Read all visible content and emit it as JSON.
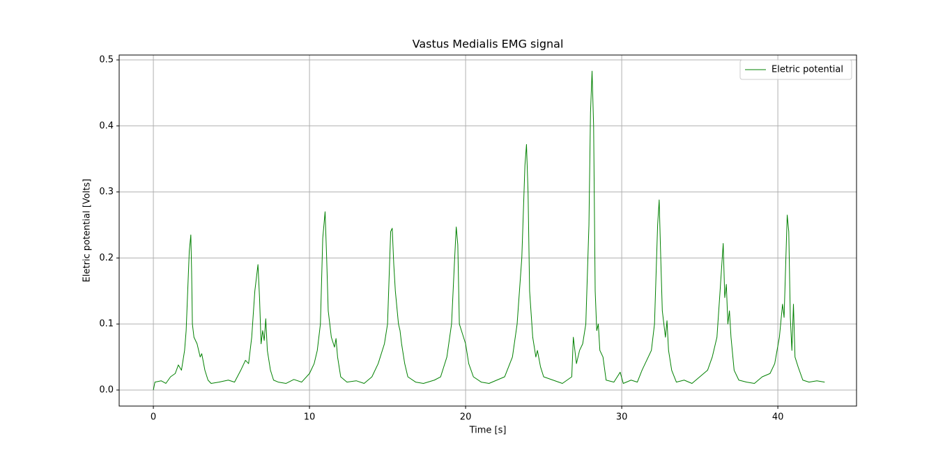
{
  "chart_data": {
    "type": "line",
    "title": "Vastus Medialis EMG signal",
    "x_label": "Time [s]",
    "y_label": "Eletric potential [Volts]",
    "x": [
      0,
      0.1,
      0.5,
      0.8,
      1.1,
      1.4,
      1.6,
      1.8,
      1.9,
      2.0,
      2.1,
      2.2,
      2.3,
      2.4,
      2.45,
      2.5,
      2.6,
      2.8,
      3.0,
      3.1,
      3.3,
      3.5,
      3.7,
      4.2,
      4.8,
      5.2,
      5.6,
      5.9,
      6.1,
      6.3,
      6.5,
      6.7,
      6.8,
      6.9,
      7.0,
      7.1,
      7.2,
      7.3,
      7.5,
      7.7,
      8.0,
      8.5,
      9.0,
      9.5,
      10.0,
      10.3,
      10.5,
      10.7,
      10.85,
      11.0,
      11.1,
      11.2,
      11.4,
      11.6,
      11.7,
      11.8,
      12.0,
      12.4,
      13.0,
      13.5,
      14.0,
      14.4,
      14.8,
      15.0,
      15.2,
      15.3,
      15.4,
      15.5,
      15.7,
      15.8,
      15.9,
      16.1,
      16.3,
      16.8,
      17.3,
      18.0,
      18.4,
      18.8,
      19.1,
      19.3,
      19.4,
      19.5,
      19.6,
      19.8,
      20.0,
      20.2,
      20.5,
      21.0,
      21.5,
      22.0,
      22.5,
      23.0,
      23.3,
      23.6,
      23.8,
      23.9,
      24.0,
      24.1,
      24.3,
      24.5,
      24.6,
      24.8,
      25.0,
      25.6,
      26.2,
      26.8,
      26.9,
      27.1,
      27.3,
      27.5,
      27.7,
      27.9,
      28.0,
      28.1,
      28.2,
      28.3,
      28.4,
      28.5,
      28.6,
      28.8,
      29.0,
      29.5,
      29.9,
      30.1,
      30.6,
      31.0,
      31.3,
      31.6,
      31.9,
      32.1,
      32.3,
      32.4,
      32.5,
      32.6,
      32.8,
      32.9,
      33.0,
      33.2,
      33.5,
      34.0,
      34.5,
      35.0,
      35.5,
      35.8,
      36.1,
      36.3,
      36.5,
      36.6,
      36.7,
      36.8,
      36.9,
      37.0,
      37.2,
      37.5,
      38.0,
      38.5,
      39.0,
      39.5,
      39.8,
      40.1,
      40.3,
      40.4,
      40.6,
      40.7,
      40.8,
      40.9,
      41.0,
      41.1,
      41.3,
      41.6,
      42.0,
      42.5,
      43.0
    ],
    "series": [
      {
        "name": "Eletric potential",
        "color": "#008000",
        "values": [
          0,
          0.012,
          0.014,
          0.01,
          0.02,
          0.025,
          0.038,
          0.03,
          0.045,
          0.06,
          0.09,
          0.15,
          0.21,
          0.235,
          0.18,
          0.1,
          0.08,
          0.07,
          0.05,
          0.055,
          0.03,
          0.015,
          0.01,
          0.012,
          0.015,
          0.012,
          0.03,
          0.045,
          0.04,
          0.08,
          0.15,
          0.19,
          0.14,
          0.07,
          0.09,
          0.075,
          0.108,
          0.06,
          0.03,
          0.015,
          0.012,
          0.01,
          0.016,
          0.012,
          0.025,
          0.04,
          0.06,
          0.1,
          0.23,
          0.27,
          0.2,
          0.12,
          0.08,
          0.065,
          0.078,
          0.05,
          0.02,
          0.012,
          0.014,
          0.01,
          0.02,
          0.04,
          0.07,
          0.1,
          0.24,
          0.245,
          0.19,
          0.15,
          0.1,
          0.09,
          0.07,
          0.04,
          0.02,
          0.012,
          0.01,
          0.015,
          0.02,
          0.05,
          0.1,
          0.2,
          0.247,
          0.22,
          0.1,
          0.085,
          0.07,
          0.04,
          0.02,
          0.012,
          0.01,
          0.015,
          0.02,
          0.05,
          0.1,
          0.2,
          0.34,
          0.372,
          0.3,
          0.15,
          0.08,
          0.05,
          0.06,
          0.035,
          0.02,
          0.015,
          0.01,
          0.02,
          0.08,
          0.04,
          0.06,
          0.07,
          0.1,
          0.25,
          0.42,
          0.483,
          0.4,
          0.15,
          0.09,
          0.1,
          0.06,
          0.05,
          0.015,
          0.012,
          0.027,
          0.01,
          0.015,
          0.012,
          0.03,
          0.045,
          0.06,
          0.1,
          0.25,
          0.288,
          0.2,
          0.12,
          0.08,
          0.105,
          0.06,
          0.03,
          0.012,
          0.015,
          0.01,
          0.02,
          0.03,
          0.05,
          0.08,
          0.15,
          0.222,
          0.14,
          0.16,
          0.1,
          0.12,
          0.08,
          0.03,
          0.015,
          0.012,
          0.01,
          0.02,
          0.025,
          0.04,
          0.08,
          0.13,
          0.11,
          0.265,
          0.24,
          0.11,
          0.06,
          0.13,
          0.05,
          0.035,
          0.015,
          0.012,
          0.014,
          0.012
        ]
      }
    ],
    "xlim": [
      -2.19,
      45.04
    ],
    "ylim": [
      -0.0243,
      0.5074
    ],
    "xticks": [
      0,
      10,
      20,
      30,
      40
    ],
    "yticks": [
      {
        "value": 0,
        "label": "0.0"
      },
      0.1,
      0.2,
      0.3,
      0.4,
      0.5
    ],
    "grid": true,
    "legend_loc": "upper right"
  }
}
